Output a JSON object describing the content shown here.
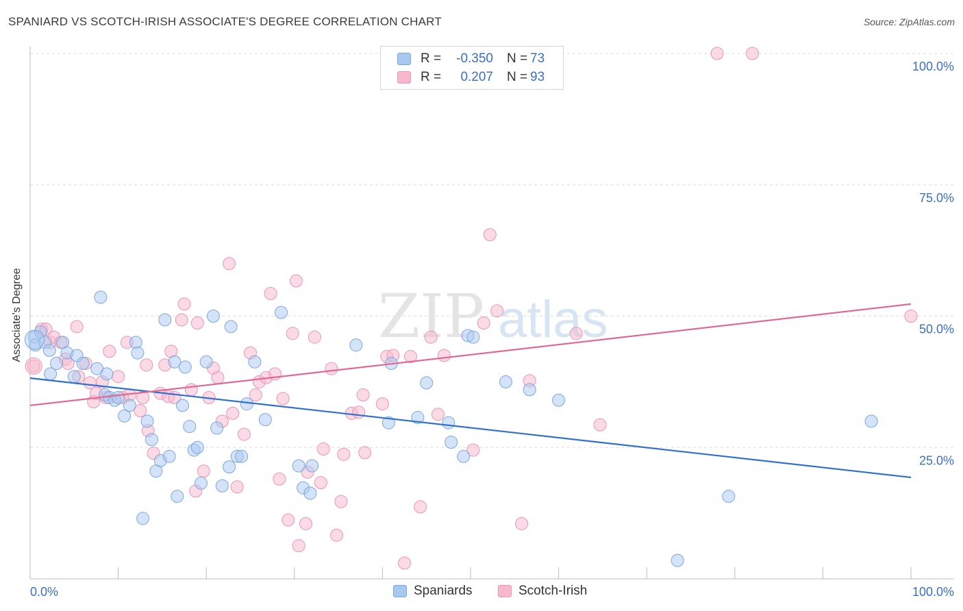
{
  "header": {
    "title": "SPANIARD VS SCOTCH-IRISH ASSOCIATE'S DEGREE CORRELATION CHART",
    "source": "Source: ZipAtlas.com"
  },
  "colors": {
    "spaniards_fill": "#a9c8f0",
    "spaniards_stroke": "#7aa7e0",
    "spaniards_line": "#2f6fcf",
    "scotch_fill": "#f6b8cc",
    "scotch_stroke": "#ef93b2",
    "scotch_line": "#e06a94",
    "axis_label": "#3b6fc4",
    "grid": "#dddddd"
  },
  "legend": {
    "rows": [
      {
        "r_label": "R =",
        "r_value": "-0.350",
        "n_label": "N =",
        "n_value": "73"
      },
      {
        "r_label": "R =",
        "r_value": "0.207",
        "n_label": "N =",
        "n_value": "93"
      }
    ]
  },
  "bottom_legend": {
    "spaniards": "Spaniards",
    "scotch_irish": "Scotch-Irish"
  },
  "watermark": {
    "zip": "ZIP",
    "atlas": "atlas"
  },
  "chart_data": {
    "type": "scatter",
    "title": "SPANIARD VS SCOTCH-IRISH ASSOCIATE'S DEGREE CORRELATION CHART",
    "xlabel": "",
    "ylabel": "Associate's Degree",
    "xlim": [
      0,
      100
    ],
    "ylim": [
      0,
      100
    ],
    "x_tick_labels": [
      "0.0%",
      "100.0%"
    ],
    "y_ticks": [
      25,
      50,
      75,
      100
    ],
    "y_tick_labels": [
      "25.0%",
      "50.0%",
      "75.0%",
      "100.0%"
    ],
    "grid": true,
    "series": [
      {
        "name": "Spaniards",
        "trend": {
          "x": [
            0,
            100
          ],
          "y": [
            38.2,
            19.3
          ]
        },
        "points": [
          [
            0.5,
            46
          ],
          [
            0.6,
            44.5
          ],
          [
            1.2,
            47
          ],
          [
            1.7,
            45
          ],
          [
            2.2,
            43.5
          ],
          [
            2.3,
            39
          ],
          [
            3.0,
            41
          ],
          [
            3.7,
            45
          ],
          [
            4.2,
            43
          ],
          [
            5.0,
            38.5
          ],
          [
            5.3,
            42.5
          ],
          [
            6.0,
            41
          ],
          [
            7.6,
            40
          ],
          [
            8.0,
            53.6
          ],
          [
            8.5,
            35
          ],
          [
            8.7,
            39
          ],
          [
            9.0,
            34.5
          ],
          [
            9.6,
            34
          ],
          [
            10.0,
            34.5
          ],
          [
            10.7,
            31
          ],
          [
            11.3,
            33
          ],
          [
            12.0,
            45
          ],
          [
            12.2,
            43
          ],
          [
            12.8,
            11.5
          ],
          [
            13.3,
            30
          ],
          [
            13.8,
            26.5
          ],
          [
            14.3,
            20.5
          ],
          [
            14.8,
            22.5
          ],
          [
            15.3,
            49.3
          ],
          [
            15.8,
            23.3
          ],
          [
            16.4,
            41.3
          ],
          [
            16.7,
            15.7
          ],
          [
            17.3,
            33
          ],
          [
            17.6,
            40.3
          ],
          [
            18.1,
            29
          ],
          [
            18.6,
            24.5
          ],
          [
            19.0,
            25
          ],
          [
            19.4,
            18.2
          ],
          [
            20.0,
            41.3
          ],
          [
            20.8,
            50
          ],
          [
            21.2,
            28.7
          ],
          [
            21.8,
            17.7
          ],
          [
            22.6,
            21.3
          ],
          [
            22.8,
            48
          ],
          [
            23.5,
            23.3
          ],
          [
            24.0,
            23.3
          ],
          [
            24.6,
            33.3
          ],
          [
            25.5,
            41.3
          ],
          [
            26.7,
            30.3
          ],
          [
            28.5,
            50.7
          ],
          [
            30.5,
            21.5
          ],
          [
            31.0,
            17.3
          ],
          [
            31.8,
            16.3
          ],
          [
            32.0,
            21.5
          ],
          [
            37.0,
            44.5
          ],
          [
            40.7,
            29.7
          ],
          [
            41.0,
            41
          ],
          [
            44.0,
            30.7
          ],
          [
            45.0,
            37.3
          ],
          [
            47.5,
            29.7
          ],
          [
            47.8,
            26
          ],
          [
            49.2,
            23.3
          ],
          [
            49.7,
            46.3
          ],
          [
            50.3,
            46
          ],
          [
            54.0,
            37.5
          ],
          [
            56.7,
            36
          ],
          [
            60.0,
            34
          ],
          [
            73.5,
            3.5
          ],
          [
            79.3,
            15.7
          ],
          [
            95.5,
            30
          ]
        ]
      },
      {
        "name": "Scotch-Irish",
        "trend": {
          "x": [
            0,
            100
          ],
          "y": [
            33.0,
            52.3
          ]
        },
        "points": [
          [
            0.4,
            40.5
          ],
          [
            1.3,
            47.5
          ],
          [
            1.8,
            47.5
          ],
          [
            2.3,
            45
          ],
          [
            2.7,
            46
          ],
          [
            3.5,
            45
          ],
          [
            4.0,
            41.8
          ],
          [
            4.3,
            41
          ],
          [
            5.3,
            48
          ],
          [
            5.5,
            38.5
          ],
          [
            6.3,
            41
          ],
          [
            6.8,
            37.3
          ],
          [
            7.2,
            33.7
          ],
          [
            7.5,
            35.3
          ],
          [
            8.2,
            37.5
          ],
          [
            8.6,
            34.5
          ],
          [
            9.0,
            43.3
          ],
          [
            10.0,
            38.5
          ],
          [
            10.5,
            34.5
          ],
          [
            11.0,
            45
          ],
          [
            11.3,
            35
          ],
          [
            12.5,
            32
          ],
          [
            12.8,
            34.5
          ],
          [
            13.2,
            40.7
          ],
          [
            13.4,
            28.2
          ],
          [
            14.0,
            23.9
          ],
          [
            14.8,
            35.3
          ],
          [
            15.3,
            40.7
          ],
          [
            15.7,
            34.7
          ],
          [
            16.0,
            43.3
          ],
          [
            16.4,
            34.5
          ],
          [
            17.2,
            49.3
          ],
          [
            17.5,
            52.3
          ],
          [
            18.3,
            36
          ],
          [
            18.8,
            16.7
          ],
          [
            19.0,
            48.7
          ],
          [
            19.7,
            20.5
          ],
          [
            20.3,
            34.5
          ],
          [
            20.8,
            40.1
          ],
          [
            21.3,
            38.3
          ],
          [
            21.8,
            30
          ],
          [
            22.6,
            60
          ],
          [
            23.0,
            31.5
          ],
          [
            23.5,
            17.5
          ],
          [
            24.3,
            27.5
          ],
          [
            25.0,
            43
          ],
          [
            25.6,
            35
          ],
          [
            26.0,
            37.5
          ],
          [
            26.8,
            38.3
          ],
          [
            27.3,
            54.3
          ],
          [
            27.8,
            39
          ],
          [
            28.3,
            19
          ],
          [
            28.7,
            34.3
          ],
          [
            29.3,
            11.2
          ],
          [
            29.8,
            46.7
          ],
          [
            30.2,
            56.7
          ],
          [
            30.5,
            6.3
          ],
          [
            31.3,
            10.5
          ],
          [
            31.5,
            20.3
          ],
          [
            32.3,
            46
          ],
          [
            33.0,
            18.3
          ],
          [
            33.3,
            24.7
          ],
          [
            34.2,
            40
          ],
          [
            34.8,
            8.3
          ],
          [
            35.3,
            14.7
          ],
          [
            35.6,
            23.7
          ],
          [
            36.5,
            31.5
          ],
          [
            37.3,
            31.7
          ],
          [
            37.8,
            35
          ],
          [
            38.0,
            24
          ],
          [
            40.0,
            33.3
          ],
          [
            40.5,
            42.3
          ],
          [
            41.2,
            42.5
          ],
          [
            42.5,
            3
          ],
          [
            43.2,
            42.3
          ],
          [
            44.3,
            13.7
          ],
          [
            45.5,
            46
          ],
          [
            46.3,
            31.3
          ],
          [
            47.0,
            42.5
          ],
          [
            50.3,
            24.5
          ],
          [
            51.5,
            48.7
          ],
          [
            52.2,
            65.5
          ],
          [
            53.0,
            51
          ],
          [
            55.8,
            10.5
          ],
          [
            56.7,
            37.7
          ],
          [
            62.0,
            46.7
          ],
          [
            64.7,
            29.3
          ],
          [
            78.0,
            100
          ],
          [
            82.0,
            100
          ],
          [
            100,
            50
          ]
        ]
      }
    ]
  }
}
